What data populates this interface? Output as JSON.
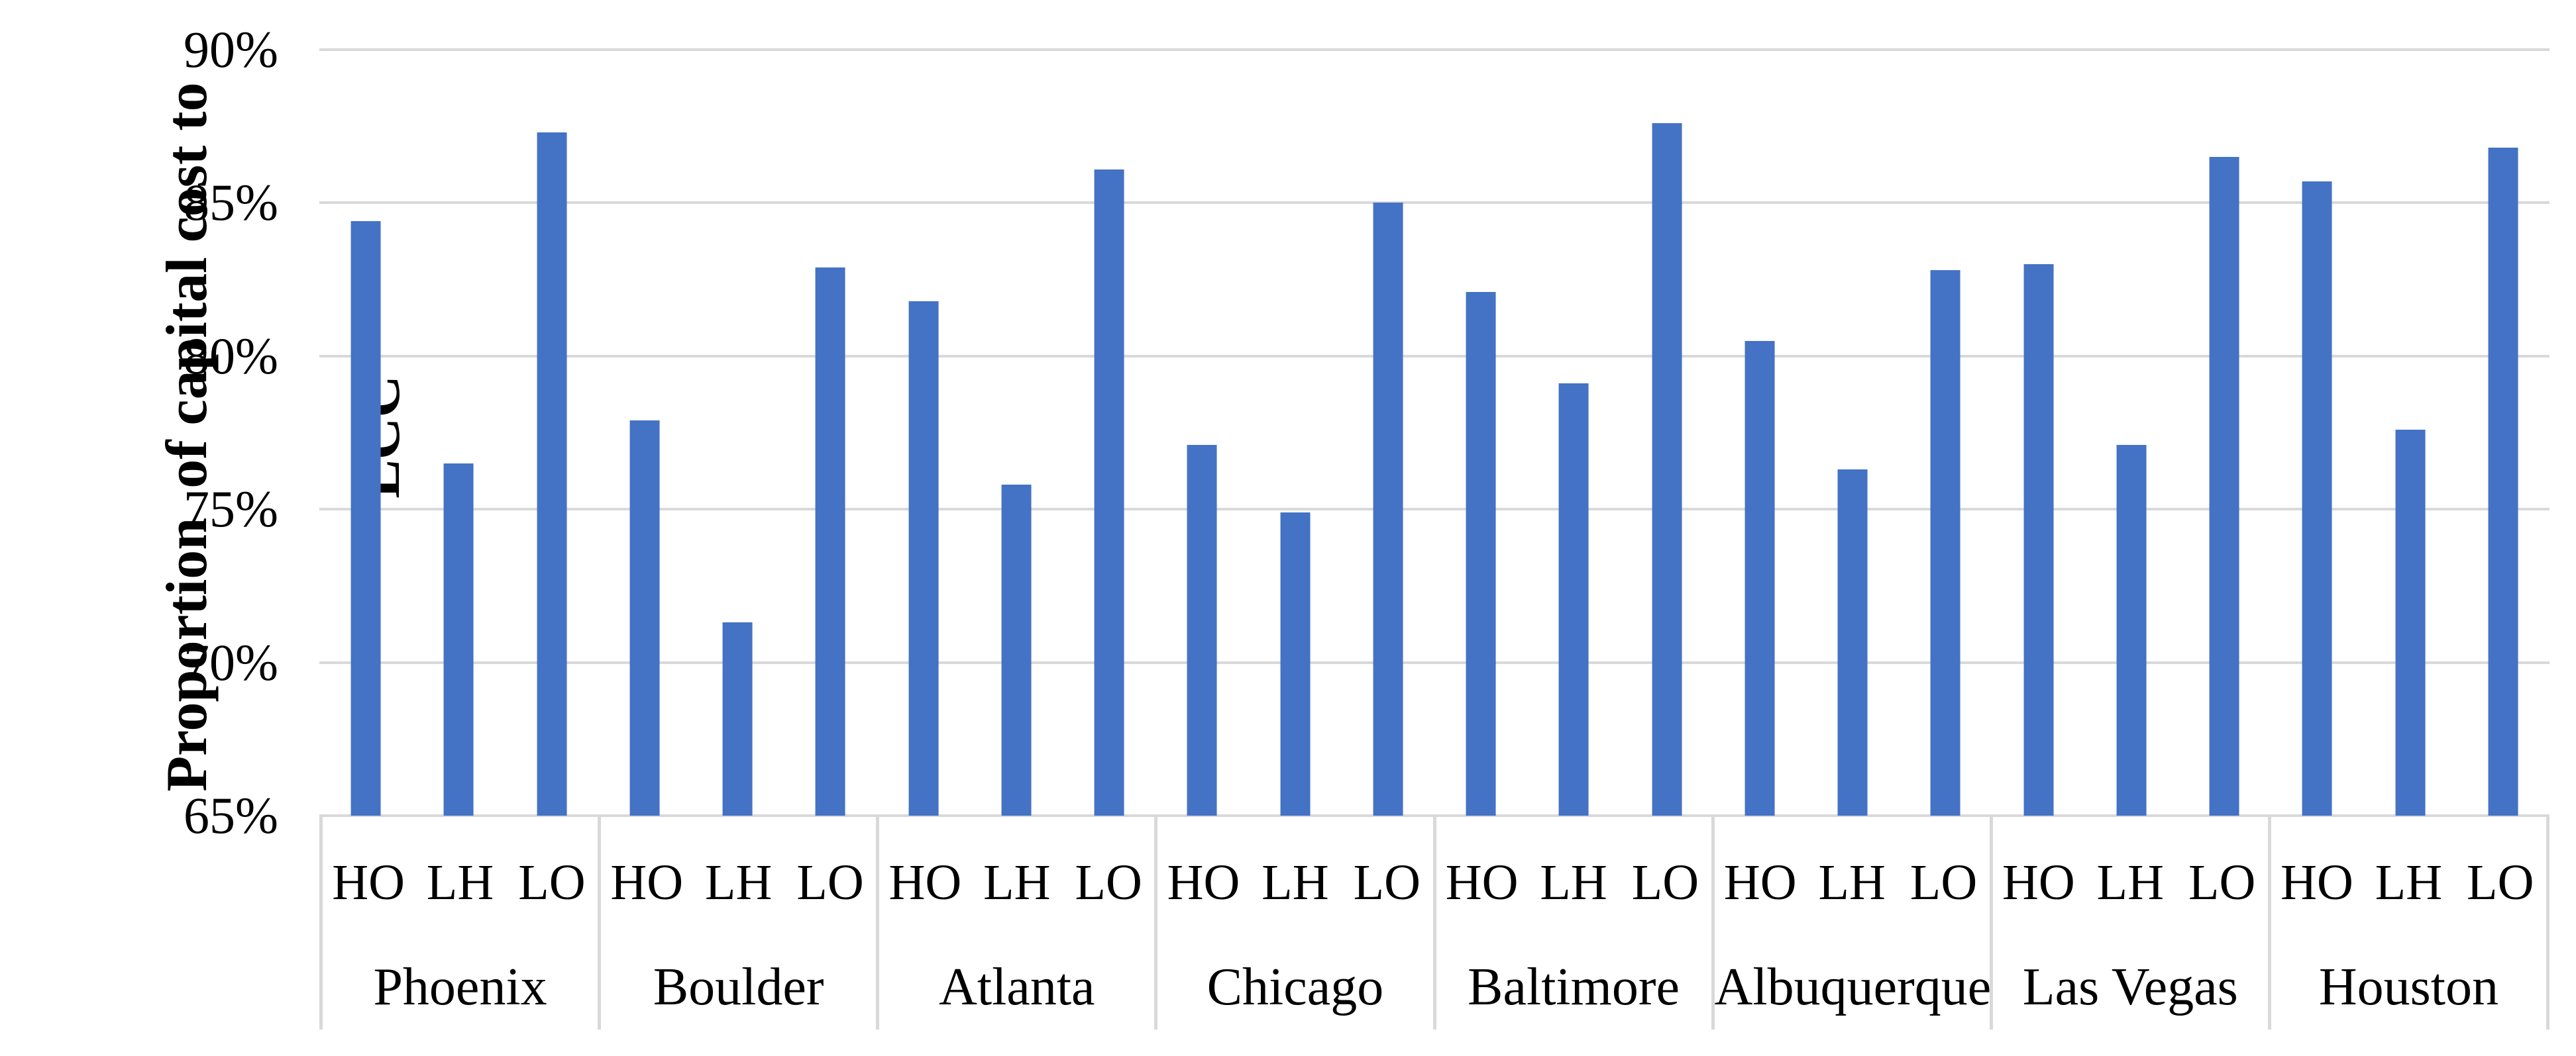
{
  "chart_data": {
    "type": "bar",
    "title": "",
    "legend": "none",
    "y_axis": {
      "label": "Proportion  of capital cost to LCC",
      "label_lines": [
        "Proportion  of capital cost to",
        "LCC"
      ],
      "ticks": [
        "90%",
        "85%",
        "80%",
        "75%",
        "70%",
        "65%"
      ],
      "min": 65,
      "max": 90,
      "step": 5,
      "unit": "%",
      "grid": true
    },
    "x_axis": {
      "sub_categories": [
        "HO",
        "LH",
        "LO"
      ]
    },
    "categories": [
      "Phoenix",
      "Boulder",
      "Atlanta",
      "Chicago",
      "Baltimore",
      "Albuquerque",
      "Las Vegas",
      "Houston"
    ],
    "series": [
      {
        "name": "HO",
        "values": [
          84.4,
          77.9,
          81.8,
          77.1,
          82.1,
          80.5,
          83.0,
          85.7
        ]
      },
      {
        "name": "LH",
        "values": [
          76.5,
          71.3,
          75.8,
          74.9,
          79.1,
          76.3,
          77.1,
          77.6
        ]
      },
      {
        "name": "LO",
        "values": [
          87.3,
          82.9,
          86.1,
          85.0,
          87.6,
          82.8,
          86.5,
          86.8
        ]
      }
    ],
    "colors": {
      "bar": "#4472C4",
      "gridline": "#D9D9D9",
      "text": "#000000"
    }
  }
}
